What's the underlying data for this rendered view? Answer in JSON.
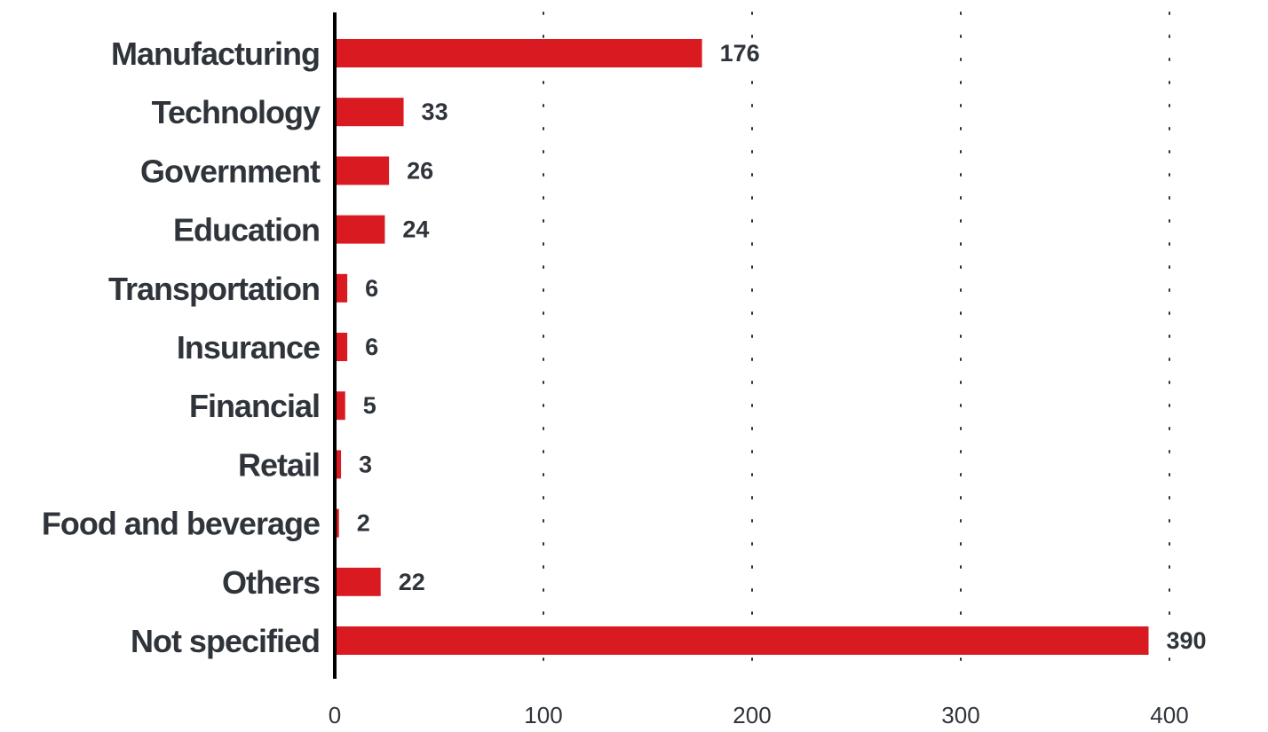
{
  "chart_data": {
    "type": "bar",
    "orientation": "horizontal",
    "categories": [
      "Manufacturing",
      "Technology",
      "Government",
      "Education",
      "Transportation",
      "Insurance",
      "Financial",
      "Retail",
      "Food and beverage",
      "Others",
      "Not specified"
    ],
    "values": [
      176,
      33,
      26,
      24,
      6,
      6,
      5,
      3,
      2,
      22,
      390
    ],
    "xlim": [
      0,
      400
    ],
    "xticks": [
      0,
      100,
      200,
      300,
      400
    ],
    "grid": "vertical dotted",
    "bar_color": "#d91a21",
    "title": "",
    "xlabel": "",
    "ylabel": ""
  }
}
